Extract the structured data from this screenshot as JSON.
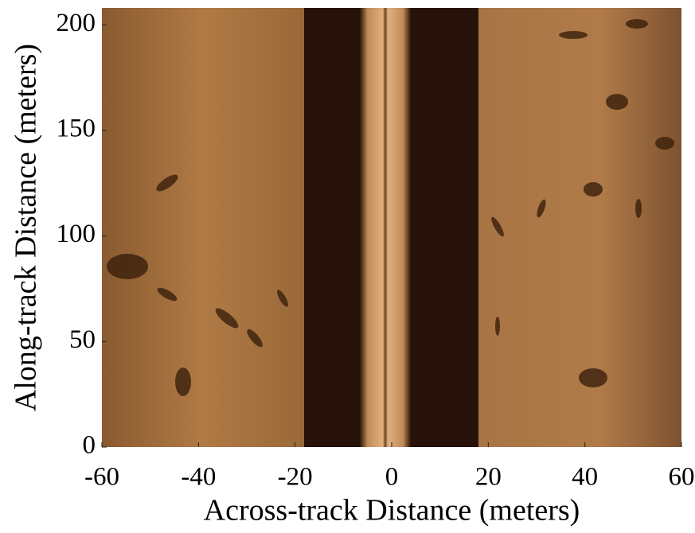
{
  "chart_data": {
    "type": "image",
    "xlabel": "Across-track Distance (meters)",
    "ylabel": "Along-track Distance (meters)",
    "xlim": [
      -60,
      60
    ],
    "xticks": [
      -60,
      -40,
      -20,
      0,
      20,
      40,
      60
    ],
    "ylim": [
      0,
      208
    ],
    "yticks": [
      0,
      50,
      100,
      150,
      200
    ]
  }
}
